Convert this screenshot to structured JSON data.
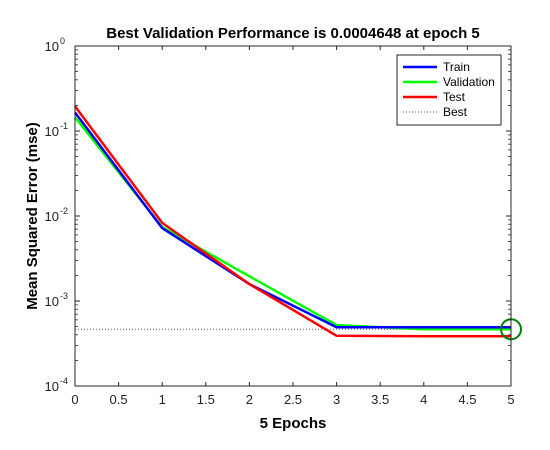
{
  "chart_data": {
    "type": "line",
    "title": "Best Validation Performance is 0.0004648 at epoch 5",
    "xlabel": "5 Epochs",
    "ylabel": "Mean Squared Error  (mse)",
    "xlim": [
      0,
      5
    ],
    "ylim": [
      0.0001,
      1
    ],
    "yscale": "log",
    "xticks": [
      "0",
      "0.5",
      "1",
      "1.5",
      "2",
      "2.5",
      "3",
      "3.5",
      "4",
      "4.5",
      "5"
    ],
    "yticks": [
      {
        "base": "10",
        "exp": "-4"
      },
      {
        "base": "10",
        "exp": "-3"
      },
      {
        "base": "10",
        "exp": "-2"
      },
      {
        "base": "10",
        "exp": "-1"
      },
      {
        "base": "10",
        "exp": "0"
      }
    ],
    "x": [
      0,
      1,
      2,
      3,
      4,
      5
    ],
    "series": [
      {
        "name": "Train",
        "color": "#0000ff",
        "values": [
          0.165,
          0.0072,
          0.00158,
          0.00049,
          0.00049,
          0.00049
        ]
      },
      {
        "name": "Validation",
        "color": "#00ff00",
        "values": [
          0.145,
          0.0074,
          0.00195,
          0.00052,
          0.000465,
          0.0004648
        ]
      },
      {
        "name": "Test",
        "color": "#ff0000",
        "values": [
          0.195,
          0.0083,
          0.00158,
          0.00039,
          0.000385,
          0.000385
        ]
      }
    ],
    "best": {
      "label": "Best",
      "epoch": 5,
      "value": 0.0004648,
      "color": "#008000"
    },
    "grid": false,
    "legend_position": "top-right"
  }
}
